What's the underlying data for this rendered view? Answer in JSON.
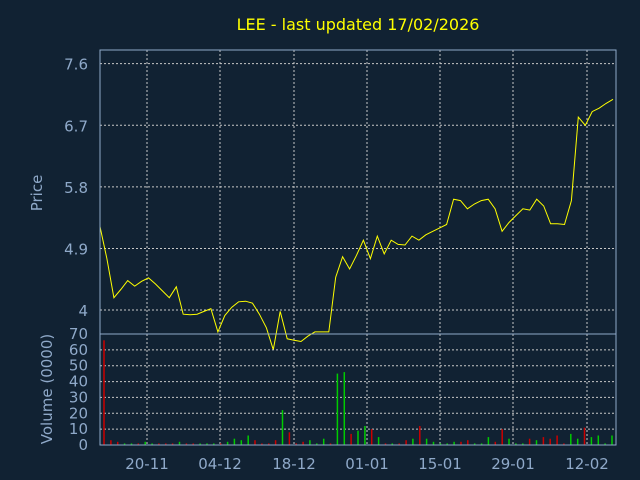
{
  "chart_data": {
    "type": "line",
    "title": "LEE - last updated 17/02/2026",
    "colors": {
      "background": "#112233",
      "title": "#ffff00",
      "axis_text": "#8fa9c9",
      "frame": "#8fa9c9",
      "grid": "#c8c8c8",
      "price_line": "#ffff00",
      "volume_up": "#00cc00",
      "volume_down": "#cc0000"
    },
    "x_tick_labels": [
      "20-11",
      "04-12",
      "18-12",
      "01-01",
      "15-01",
      "29-01",
      "12-02"
    ],
    "price_panel": {
      "ylabel": "Price",
      "ylim": [
        3.65,
        7.8
      ],
      "yticks": [
        "7.6",
        "6.7",
        "5.8",
        "4.9",
        "4"
      ],
      "ytick_values": [
        7.6,
        6.7,
        5.8,
        4.9,
        4.0
      ],
      "series": [
        {
          "values": [
            5.22,
            4.75,
            4.18,
            4.3,
            4.43,
            4.35,
            4.42,
            4.47,
            4.38,
            4.28,
            4.18,
            4.34,
            3.94,
            3.93,
            3.94,
            3.98,
            4.02,
            3.68,
            3.92,
            4.04,
            4.12,
            4.13,
            4.1,
            3.94,
            3.74,
            3.42,
            3.98,
            3.58,
            3.56,
            3.54,
            3.62,
            3.68,
            3.68,
            3.68,
            4.48,
            4.78,
            4.6,
            4.8,
            5.02,
            4.75,
            5.08,
            4.82,
            5.02,
            4.96,
            4.95,
            5.08,
            5.02,
            5.1,
            5.15,
            5.2,
            5.25,
            5.62,
            5.6,
            5.48,
            5.55,
            5.6,
            5.62,
            5.48,
            5.15,
            5.28,
            5.38,
            5.48,
            5.46,
            5.62,
            5.52,
            5.26,
            5.26,
            5.25,
            5.6,
            6.82,
            6.7,
            6.9,
            6.95,
            7.02,
            7.08
          ]
        }
      ]
    },
    "volume_panel": {
      "ylabel": "Volume (0000)",
      "ylim": [
        0,
        70
      ],
      "yticks": [
        "70",
        "60",
        "50",
        "40",
        "30",
        "20",
        "10",
        "0"
      ],
      "ytick_values": [
        70,
        60,
        50,
        40,
        30,
        20,
        10,
        0
      ],
      "volumes": [
        66,
        3,
        2,
        1,
        1,
        1,
        2,
        1,
        1,
        1,
        1,
        2,
        1,
        1,
        1,
        1,
        1,
        1,
        2,
        4,
        3,
        6,
        3,
        1,
        1,
        3,
        22,
        8,
        1,
        2,
        3,
        1,
        4,
        1,
        45,
        46,
        7,
        9,
        12,
        10,
        5,
        1,
        1,
        1,
        3,
        4,
        12,
        4,
        2,
        1,
        1,
        2,
        2,
        3,
        1,
        1,
        5,
        2,
        10,
        4,
        1,
        1,
        4,
        3,
        5,
        4,
        6,
        1,
        7,
        4,
        11,
        5,
        6,
        1,
        6
      ],
      "directions": [
        "down",
        "down",
        "down",
        "up",
        "up",
        "down",
        "up",
        "up",
        "down",
        "down",
        "down",
        "up",
        "down",
        "down",
        "up",
        "up",
        "up",
        "down",
        "up",
        "up",
        "up",
        "up",
        "down",
        "down",
        "down",
        "down",
        "up",
        "down",
        "down",
        "down",
        "up",
        "up",
        "up",
        "down",
        "up",
        "up",
        "down",
        "up",
        "up",
        "down",
        "up",
        "down",
        "up",
        "down",
        "down",
        "up",
        "down",
        "up",
        "up",
        "up",
        "up",
        "up",
        "down",
        "down",
        "up",
        "up",
        "up",
        "down",
        "down",
        "up",
        "up",
        "up",
        "down",
        "up",
        "down",
        "down",
        "down",
        "down",
        "up",
        "up",
        "down",
        "up",
        "up",
        "up",
        "up"
      ]
    }
  }
}
